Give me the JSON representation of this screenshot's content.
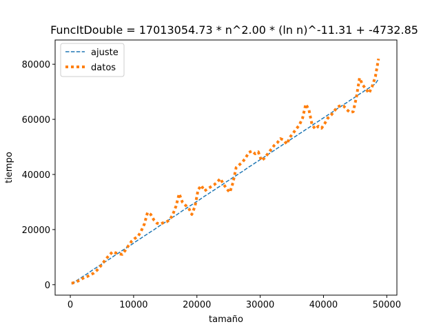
{
  "chart_data": {
    "type": "line",
    "title": "FuncItDouble = 17013054.73 * n^2.00 * (ln n)^-11.31 + -4732.85",
    "xlabel": "tamaño",
    "ylabel": "tiempo",
    "xlim": [
      -2400,
      51600
    ],
    "ylim": [
      -3800,
      88800
    ],
    "xticks": [
      0,
      10000,
      20000,
      30000,
      40000,
      50000
    ],
    "xtick_labels": [
      "0",
      "10000",
      "20000",
      "30000",
      "40000",
      "50000"
    ],
    "yticks": [
      0,
      20000,
      40000,
      60000,
      80000
    ],
    "ytick_labels": [
      "0",
      "20000",
      "40000",
      "60000",
      "80000"
    ],
    "grid": false,
    "legend_position": "upper-left",
    "x": [
      200,
      700,
      1200,
      1700,
      2200,
      2700,
      3200,
      3700,
      4200,
      4700,
      5200,
      5700,
      6200,
      6700,
      7200,
      7700,
      8200,
      8700,
      9200,
      9700,
      10200,
      10700,
      11200,
      11700,
      12200,
      12700,
      13200,
      13700,
      14200,
      14700,
      15200,
      15700,
      16200,
      16700,
      17200,
      17700,
      18200,
      18700,
      19200,
      19700,
      20200,
      20700,
      21200,
      21700,
      22200,
      22700,
      23200,
      23700,
      24200,
      24700,
      25200,
      25700,
      26200,
      26700,
      27200,
      27700,
      28200,
      28700,
      29200,
      29700,
      30200,
      30700,
      31200,
      31700,
      32200,
      32700,
      33200,
      33700,
      34200,
      34700,
      35200,
      35700,
      36200,
      36700,
      37200,
      37700,
      38200,
      38700,
      39200,
      39700,
      40200,
      40700,
      41200,
      41700,
      42200,
      42700,
      43200,
      43700,
      44200,
      44700,
      45200,
      45700,
      46200,
      46700,
      47200,
      47700,
      48200,
      48700
    ],
    "series": [
      {
        "name": "ajuste",
        "color": "#1f77b4",
        "style": "dashed",
        "values": [
          200,
          1000,
          1800,
          2500,
          3300,
          4000,
          4800,
          5600,
          6300,
          7100,
          7800,
          8600,
          9300,
          10100,
          10900,
          11600,
          12400,
          13100,
          13900,
          14600,
          15400,
          16200,
          16900,
          17700,
          18400,
          19200,
          19900,
          20700,
          21500,
          22200,
          23000,
          23700,
          24500,
          25200,
          26000,
          26800,
          27500,
          28300,
          29000,
          29800,
          30500,
          31300,
          32100,
          32800,
          33600,
          34300,
          35100,
          35800,
          36600,
          37400,
          38100,
          38900,
          39600,
          40400,
          41100,
          41900,
          42700,
          43400,
          44200,
          44900,
          45700,
          46400,
          47200,
          48000,
          48700,
          49500,
          50200,
          51000,
          51700,
          52500,
          53300,
          54000,
          54800,
          55500,
          56300,
          57000,
          57800,
          58600,
          59300,
          60100,
          60800,
          61600,
          62300,
          63100,
          63900,
          64600,
          65400,
          66100,
          66900,
          67600,
          68400,
          69200,
          69900,
          70700,
          71400,
          72200,
          72900,
          74700
        ]
      },
      {
        "name": "datos",
        "color": "#ff7f0e",
        "style": "dotted",
        "values": [
          500,
          800,
          1300,
          1900,
          2600,
          3000,
          3600,
          4200,
          5200,
          6500,
          8000,
          9500,
          10800,
          12000,
          11500,
          11200,
          11000,
          12500,
          14200,
          15800,
          16800,
          17500,
          19500,
          22000,
          26200,
          25500,
          23500,
          22300,
          22000,
          22500,
          22800,
          23500,
          25500,
          28500,
          33000,
          30000,
          28800,
          27800,
          25500,
          28500,
          34500,
          36000,
          34000,
          34800,
          35500,
          36200,
          37200,
          38500,
          36500,
          34800,
          33500,
          37000,
          42500,
          43500,
          44500,
          46000,
          48000,
          48500,
          47500,
          48200,
          45000,
          46000,
          47500,
          49000,
          50500,
          51500,
          53000,
          52500,
          51000,
          53500,
          55000,
          56500,
          58000,
          60500,
          65500,
          63500,
          58000,
          56500,
          57500,
          56800,
          58500,
          60500,
          61500,
          63000,
          64500,
          65000,
          64800,
          63500,
          62500,
          62800,
          68000,
          75000,
          72500,
          71000,
          69500,
          72000,
          75500,
          82000
        ]
      }
    ]
  }
}
